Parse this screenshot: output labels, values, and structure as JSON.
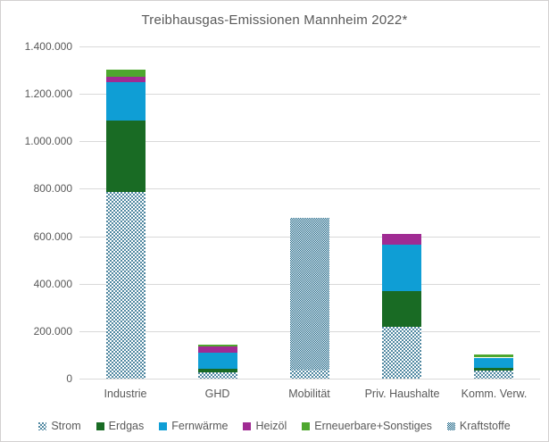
{
  "title": "Treibhausgas-Emissionen Mannheim 2022*",
  "colors": {
    "text": "#595959",
    "gridline": "#d9d9d9",
    "pattern_blue": "#156082",
    "erdgas_green": "#196B24",
    "fernwaerme_blue": "#0F9ED5",
    "heizoel_purple": "#A02B93",
    "erneuerbare_green": "#4EA72E"
  },
  "chart_data": {
    "type": "bar",
    "stacked": true,
    "title": "Treibhausgas-Emissionen Mannheim 2022*",
    "categories": [
      "Industrie",
      "GHD",
      "Mobilität",
      "Priv. Haushalte",
      "Komm. Verw."
    ],
    "series": [
      {
        "name": "Strom",
        "fill": "dots",
        "color": "#156082",
        "values": [
          785000,
          28000,
          40000,
          220000,
          35000
        ]
      },
      {
        "name": "Erdgas",
        "fill": "solid",
        "color": "#196B24",
        "values": [
          305000,
          15000,
          0,
          150000,
          12000
        ]
      },
      {
        "name": "Fernwärme",
        "fill": "solid",
        "color": "#0F9ED5",
        "values": [
          160000,
          68000,
          0,
          195000,
          40000
        ]
      },
      {
        "name": "Heizöl",
        "fill": "solid",
        "color": "#A02B93",
        "values": [
          22000,
          25000,
          0,
          45000,
          0
        ]
      },
      {
        "name": "Erneuerbare+Sonstiges",
        "fill": "solid",
        "color": "#4EA72E",
        "values": [
          31000,
          7000,
          0,
          0,
          13000
        ]
      },
      {
        "name": "Kraftstoffe",
        "fill": "checker",
        "color": "#156082",
        "values": [
          0,
          0,
          638000,
          0,
          0
        ]
      }
    ],
    "category_totals": [
      1303000,
      143000,
      678000,
      610000,
      100000
    ],
    "xlabel": "",
    "ylabel": "",
    "ylim": [
      0,
      1400000
    ],
    "ytick_step": 200000,
    "ytick_labels": [
      "0",
      "200.000",
      "400.000",
      "600.000",
      "800.000",
      "1.000.000",
      "1.200.000",
      "1.400.000"
    ],
    "grid": true,
    "legend_position": "bottom"
  }
}
